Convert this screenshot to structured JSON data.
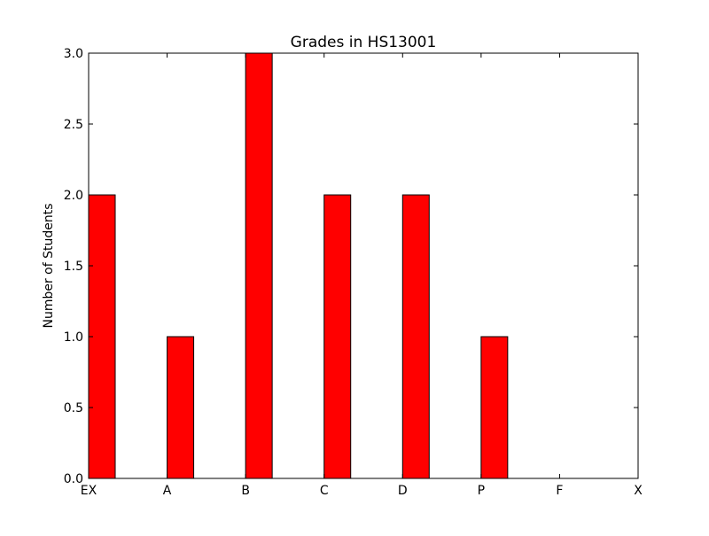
{
  "chart_data": {
    "type": "bar",
    "title": "Grades in HS13001",
    "xlabel": "",
    "ylabel": "Number of Students",
    "categories": [
      "EX",
      "A",
      "B",
      "C",
      "D",
      "P",
      "F",
      "X"
    ],
    "values": [
      2,
      1,
      3,
      2,
      2,
      1,
      0,
      0
    ],
    "ylim": [
      0,
      3.0
    ],
    "yticks": [
      "0.0",
      "0.5",
      "1.0",
      "1.5",
      "2.0",
      "2.5",
      "3.0"
    ],
    "grid": false,
    "bar_color": "#ff0000",
    "edge_color": "#000000"
  }
}
